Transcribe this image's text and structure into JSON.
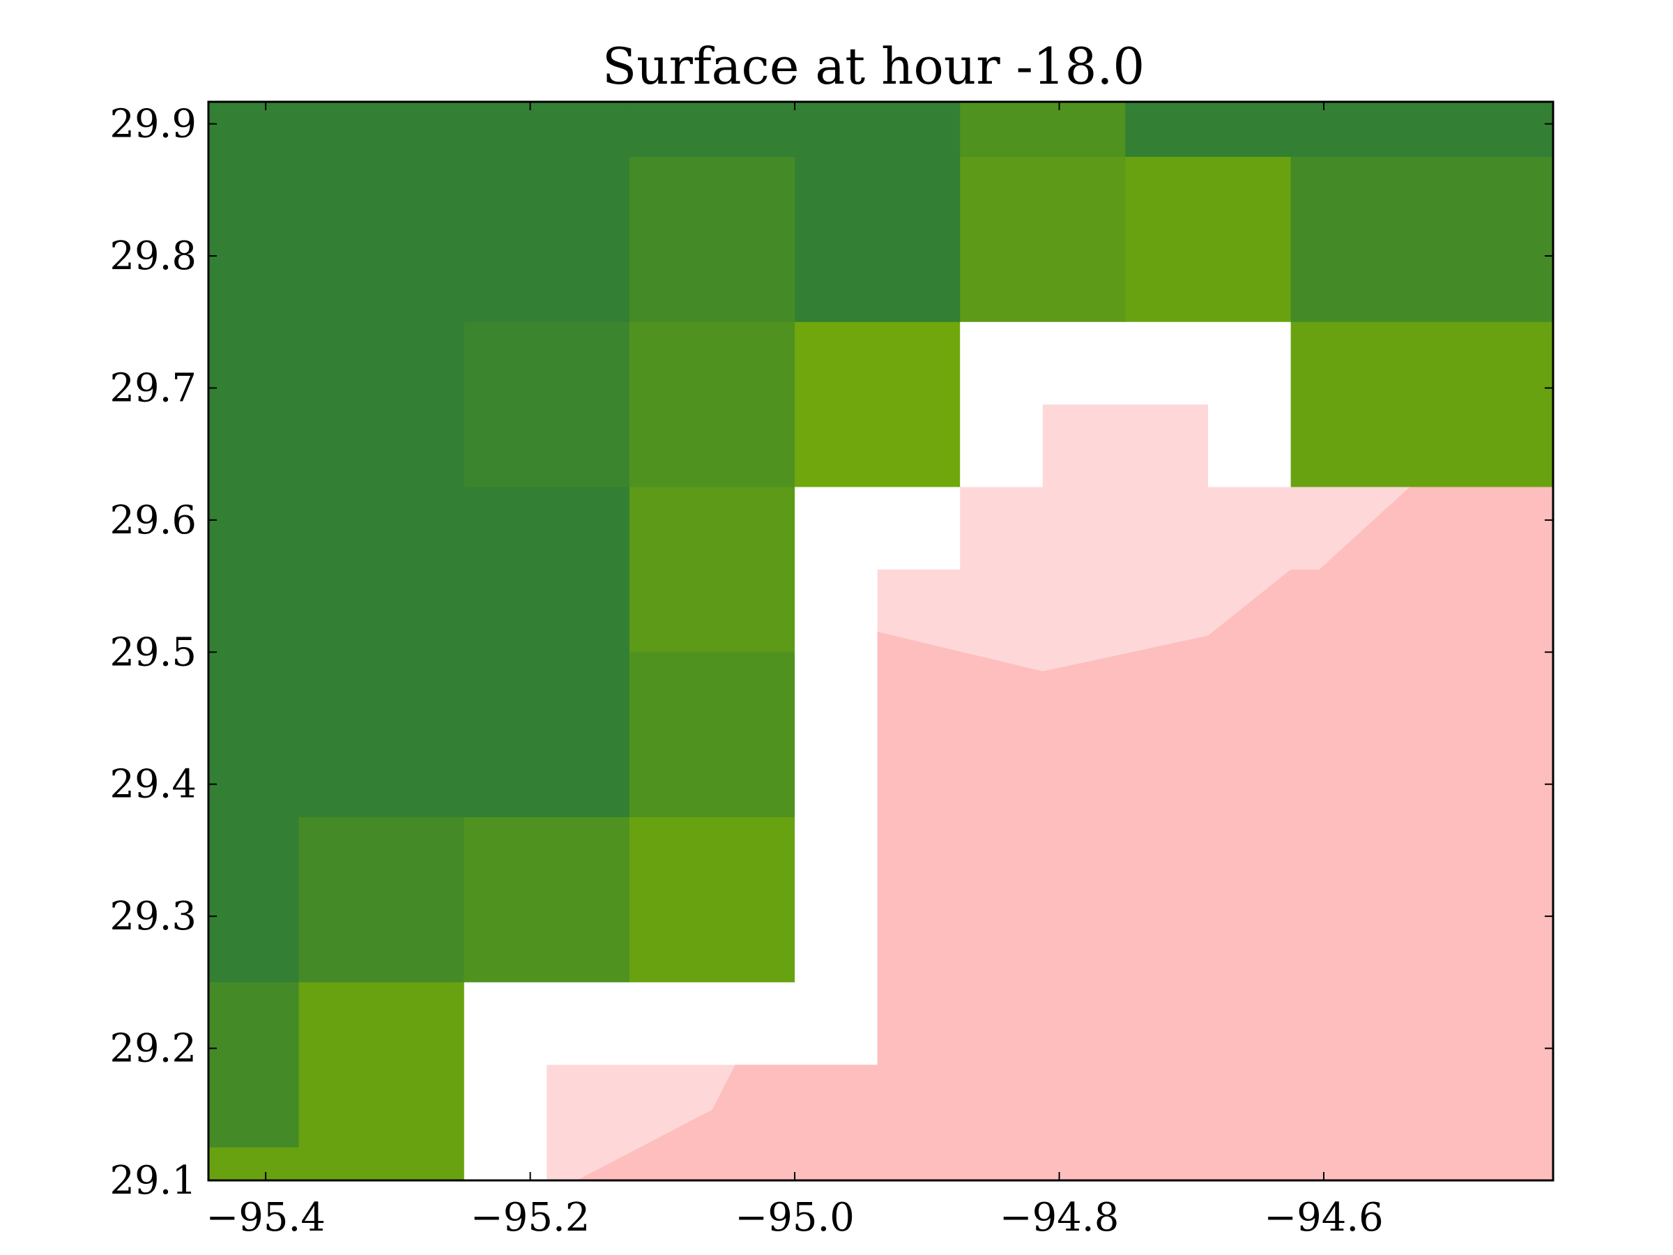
{
  "chart_data": {
    "type": "heatmap",
    "title": "Surface at hour -18.0",
    "xlabel": "",
    "ylabel": "",
    "xlim": [
      -95.4433,
      -94.4266
    ],
    "ylim": [
      29.1,
      29.9167
    ],
    "x_ticks": [
      -95.4,
      -95.2,
      -95.0,
      -94.8,
      -94.6
    ],
    "x_tick_labels": [
      "−95.4",
      "−95.2",
      "−95.0",
      "−94.8",
      "−94.6"
    ],
    "y_ticks": [
      29.1,
      29.2,
      29.3,
      29.4,
      29.5,
      29.6,
      29.7,
      29.8,
      29.9
    ],
    "y_tick_labels": [
      "29.1",
      "29.2",
      "29.3",
      "29.4",
      "29.5",
      "29.6",
      "29.7",
      "29.8",
      "29.9"
    ],
    "grid": false,
    "legend": "none",
    "colors": {
      "green_1": "#337f33",
      "green_2": "#3b852e",
      "green_3": "#448b28",
      "green_4": "#509220",
      "green_5": "#5d9a18",
      "green_6": "#68a211",
      "green_7": "#6fa70d",
      "water": "#ffffff",
      "pink_light": "#fed8d8",
      "pink": "#febebe"
    },
    "cells": [
      {
        "x0": -95.4433,
        "x1": -95.25,
        "y0": 29.75,
        "y1": 29.9167,
        "color": "green_1"
      },
      {
        "x0": -95.25,
        "x1": -95.125,
        "y0": 29.875,
        "y1": 29.9167,
        "color": "green_1"
      },
      {
        "x0": -95.125,
        "x1": -94.875,
        "y0": 29.875,
        "y1": 29.9167,
        "color": "green_1"
      },
      {
        "x0": -94.875,
        "x1": -94.75,
        "y0": 29.875,
        "y1": 29.9167,
        "color": "green_4"
      },
      {
        "x0": -94.75,
        "x1": -94.4266,
        "y0": 29.875,
        "y1": 29.9167,
        "color": "green_1"
      },
      {
        "x0": -95.25,
        "x1": -95.125,
        "y0": 29.75,
        "y1": 29.875,
        "color": "green_1"
      },
      {
        "x0": -95.125,
        "x1": -95.0,
        "y0": 29.75,
        "y1": 29.875,
        "color": "green_3"
      },
      {
        "x0": -95.0,
        "x1": -94.875,
        "y0": 29.75,
        "y1": 29.875,
        "color": "green_1"
      },
      {
        "x0": -94.875,
        "x1": -94.75,
        "y0": 29.75,
        "y1": 29.875,
        "color": "green_5"
      },
      {
        "x0": -94.75,
        "x1": -94.625,
        "y0": 29.75,
        "y1": 29.875,
        "color": "green_6"
      },
      {
        "x0": -94.625,
        "x1": -94.4266,
        "y0": 29.75,
        "y1": 29.875,
        "color": "green_3"
      },
      {
        "x0": -95.4433,
        "x1": -95.25,
        "y0": 29.375,
        "y1": 29.75,
        "color": "green_1"
      },
      {
        "x0": -95.25,
        "x1": -95.125,
        "y0": 29.625,
        "y1": 29.75,
        "color": "green_2"
      },
      {
        "x0": -95.125,
        "x1": -95.0,
        "y0": 29.625,
        "y1": 29.75,
        "color": "green_4"
      },
      {
        "x0": -95.0,
        "x1": -94.875,
        "y0": 29.625,
        "y1": 29.75,
        "color": "green_7"
      },
      {
        "x0": -94.625,
        "x1": -94.4266,
        "y0": 29.625,
        "y1": 29.75,
        "color": "green_6"
      },
      {
        "x0": -95.25,
        "x1": -95.125,
        "y0": 29.375,
        "y1": 29.625,
        "color": "green_1"
      },
      {
        "x0": -95.125,
        "x1": -95.0,
        "y0": 29.5,
        "y1": 29.625,
        "color": "green_5"
      },
      {
        "x0": -95.125,
        "x1": -95.0,
        "y0": 29.375,
        "y1": 29.5,
        "color": "green_4"
      },
      {
        "x0": -95.4433,
        "x1": -95.375,
        "y0": 29.25,
        "y1": 29.375,
        "color": "green_1"
      },
      {
        "x0": -95.375,
        "x1": -95.25,
        "y0": 29.25,
        "y1": 29.375,
        "color": "green_3"
      },
      {
        "x0": -95.25,
        "x1": -95.125,
        "y0": 29.25,
        "y1": 29.375,
        "color": "green_4"
      },
      {
        "x0": -95.125,
        "x1": -95.0,
        "y0": 29.25,
        "y1": 29.375,
        "color": "green_6"
      },
      {
        "x0": -95.4433,
        "x1": -95.375,
        "y0": 29.125,
        "y1": 29.25,
        "color": "green_3"
      },
      {
        "x0": -95.4433,
        "x1": -95.375,
        "y0": 29.1,
        "y1": 29.125,
        "color": "green_6"
      },
      {
        "x0": -95.375,
        "x1": -95.25,
        "y0": 29.1,
        "y1": 29.25,
        "color": "green_6"
      }
    ],
    "regions": [
      {
        "color": "water",
        "points": [
          [
            -94.875,
            29.75
          ],
          [
            -94.625,
            29.75
          ],
          [
            -94.625,
            29.625
          ],
          [
            -94.6875,
            29.625
          ],
          [
            -94.6875,
            29.6875
          ],
          [
            -94.8125,
            29.6875
          ],
          [
            -94.8125,
            29.625
          ],
          [
            -94.875,
            29.625
          ]
        ]
      },
      {
        "color": "water",
        "points": [
          [
            -95.0,
            29.625
          ],
          [
            -94.875,
            29.625
          ],
          [
            -94.875,
            29.5625
          ],
          [
            -94.9375,
            29.5625
          ],
          [
            -94.9375,
            29.1875
          ],
          [
            -95.1875,
            29.1875
          ],
          [
            -95.1875,
            29.1
          ],
          [
            -95.25,
            29.1
          ],
          [
            -95.25,
            29.25
          ],
          [
            -95.0,
            29.25
          ]
        ]
      },
      {
        "color": "pink_light",
        "points": [
          [
            -94.8125,
            29.6875
          ],
          [
            -94.6875,
            29.6875
          ],
          [
            -94.6875,
            29.625
          ],
          [
            -94.4266,
            29.625
          ],
          [
            -94.4266,
            29.1
          ],
          [
            -95.1875,
            29.1
          ],
          [
            -95.1875,
            29.1875
          ],
          [
            -94.9375,
            29.1875
          ],
          [
            -94.9375,
            29.5625
          ],
          [
            -94.875,
            29.5625
          ],
          [
            -94.875,
            29.625
          ],
          [
            -94.8125,
            29.625
          ]
        ]
      },
      {
        "color": "pink",
        "points": [
          [
            -94.535,
            29.625
          ],
          [
            -94.4266,
            29.625
          ],
          [
            -94.4266,
            29.1
          ],
          [
            -95.165,
            29.1
          ],
          [
            -95.0625,
            29.1535
          ],
          [
            -95.045,
            29.1875
          ],
          [
            -94.9375,
            29.1875
          ],
          [
            -94.9375,
            29.5155
          ],
          [
            -94.8125,
            29.4855
          ],
          [
            -94.6875,
            29.5125
          ],
          [
            -94.625,
            29.5625
          ],
          [
            -94.6035,
            29.5625
          ]
        ]
      }
    ]
  }
}
